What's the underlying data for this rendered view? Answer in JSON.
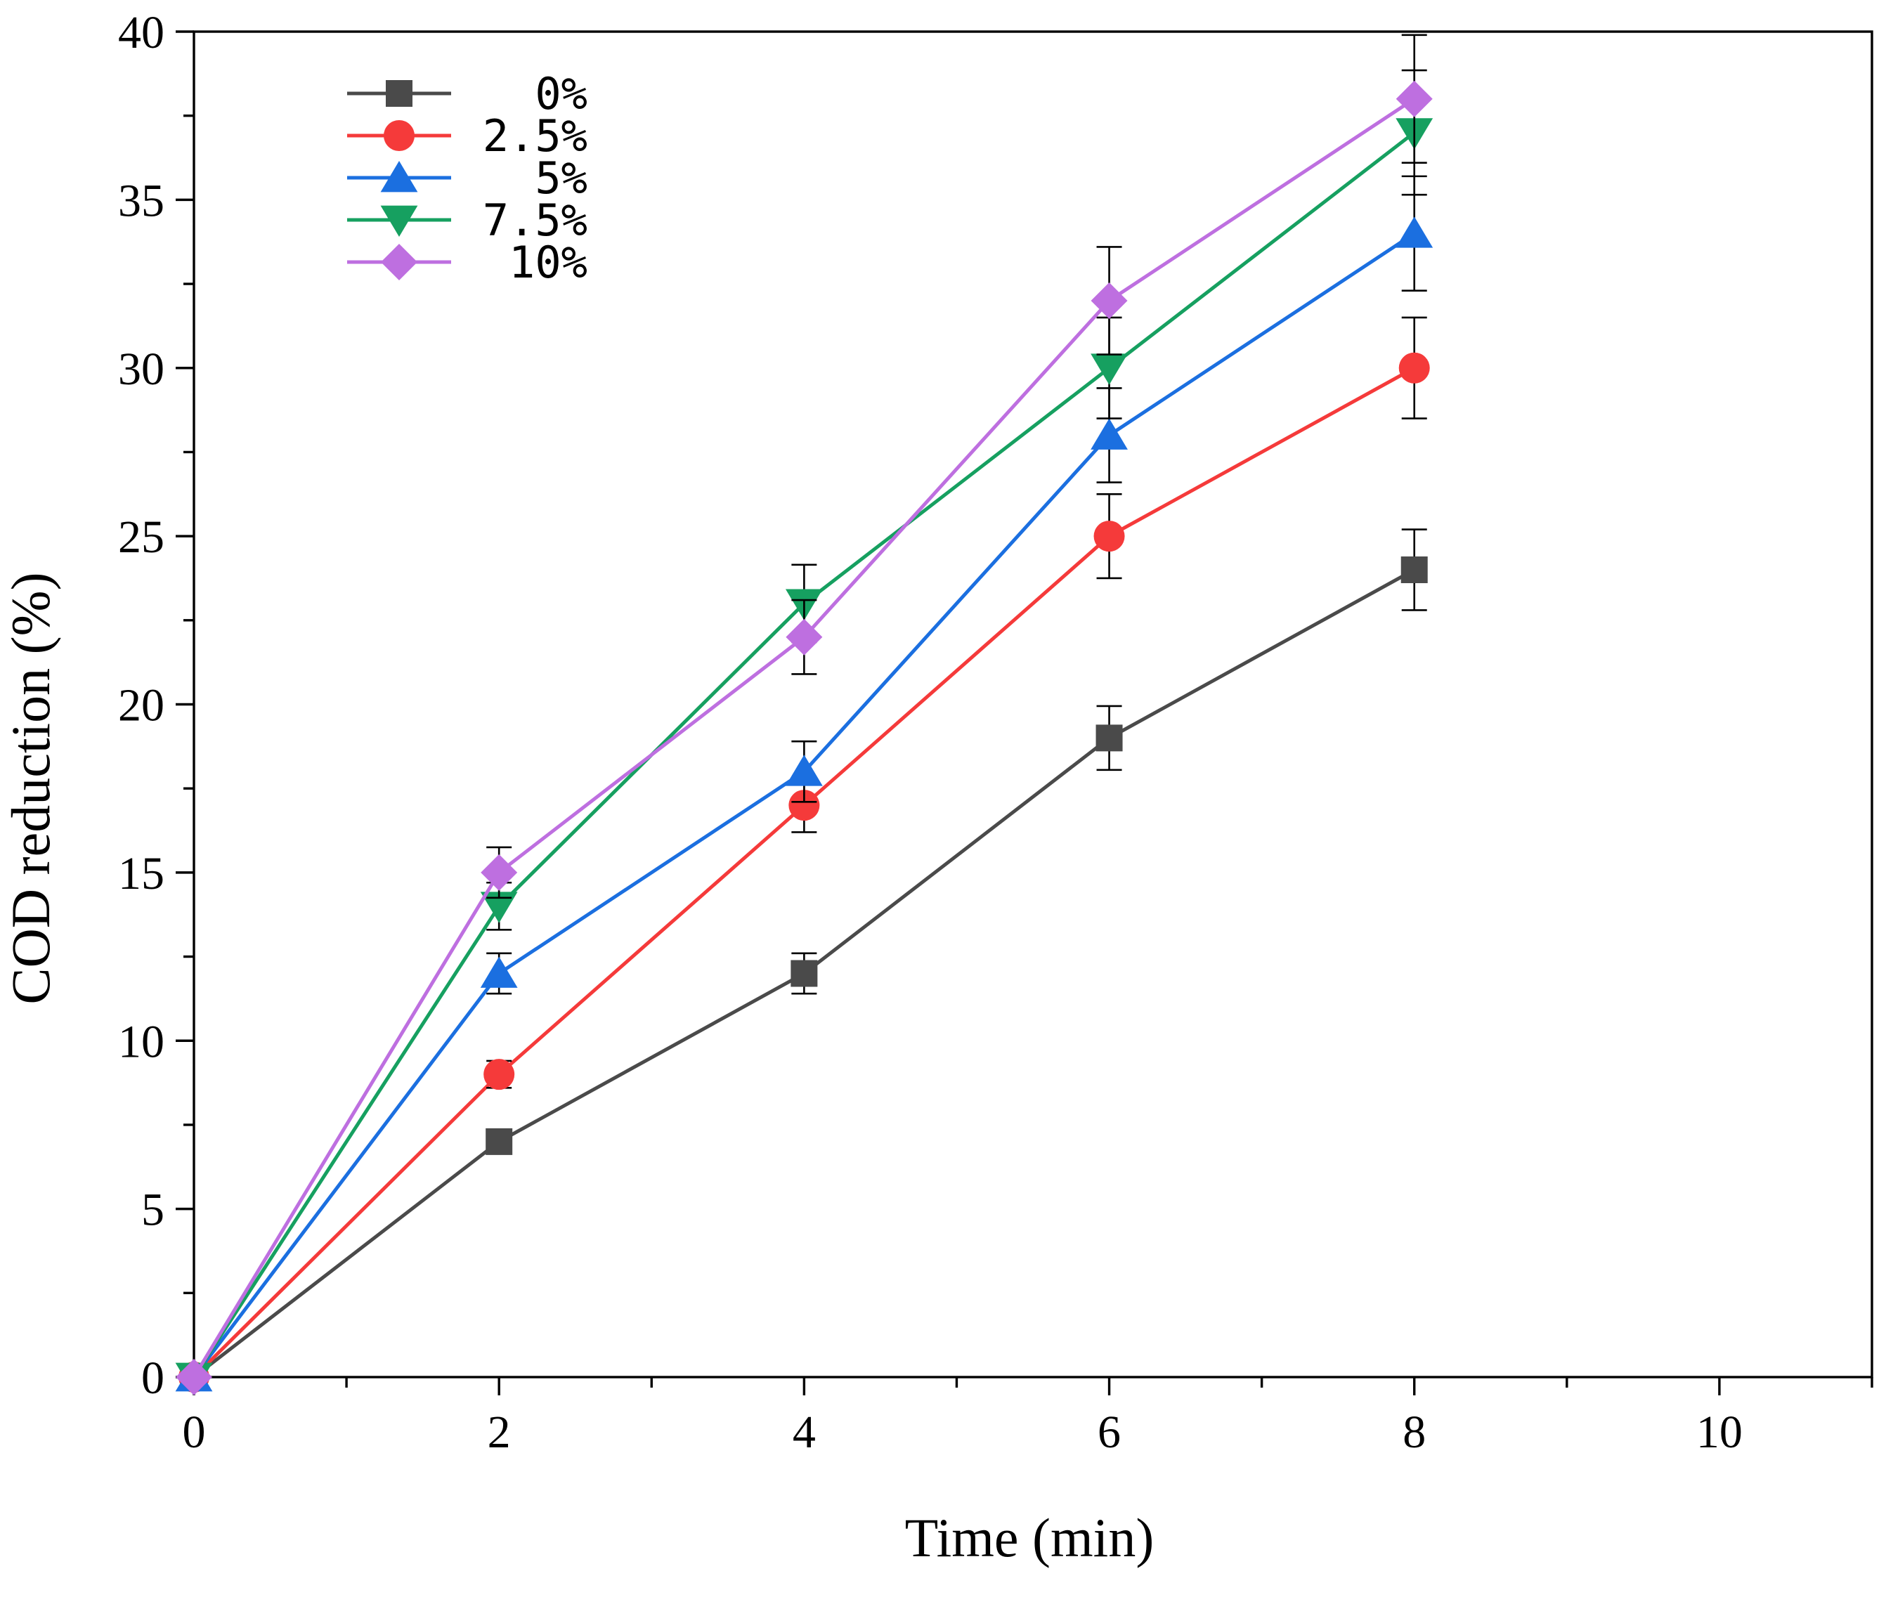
{
  "chart_data": {
    "type": "line",
    "title": "",
    "xlabel": "Time (min)",
    "ylabel": "COD reduction (%)",
    "xlim": [
      0,
      11
    ],
    "ylim": [
      0,
      40
    ],
    "xticks": [
      0,
      2,
      4,
      6,
      8,
      10
    ],
    "yticks": [
      0,
      5,
      10,
      15,
      20,
      25,
      30,
      35,
      40
    ],
    "xtick_labels": [
      "0",
      "2",
      "4",
      "6",
      "8",
      "10"
    ],
    "ytick_labels": [
      "0",
      "5",
      "10",
      "15",
      "20",
      "25",
      "30",
      "35",
      "40"
    ],
    "x": [
      0,
      2,
      4,
      6,
      8
    ],
    "legend_position": "top-left",
    "series": [
      {
        "name": "0%",
        "marker": "square",
        "color": "#4a4a4a",
        "values": [
          0,
          7,
          12,
          19,
          24
        ],
        "errors": [
          0,
          0.3,
          0.6,
          0.95,
          1.2
        ]
      },
      {
        "name": "2.5%",
        "marker": "circle",
        "color": "#f53a3a",
        "values": [
          0,
          9,
          17,
          25,
          30
        ],
        "errors": [
          0,
          0.4,
          0.8,
          1.25,
          1.5
        ]
      },
      {
        "name": "5%",
        "marker": "triangle-up",
        "color": "#1b6fe0",
        "values": [
          0,
          12,
          18,
          28,
          34
        ],
        "errors": [
          0,
          0.6,
          0.9,
          1.4,
          1.7
        ]
      },
      {
        "name": "7.5%",
        "marker": "triangle-down",
        "color": "#16a060",
        "values": [
          0,
          14,
          23,
          30,
          37
        ],
        "errors": [
          0,
          0.7,
          1.15,
          1.5,
          1.85
        ]
      },
      {
        "name": "10%",
        "marker": "diamond",
        "color": "#be6fe0",
        "values": [
          0,
          15,
          22,
          32,
          38
        ],
        "errors": [
          0,
          0.75,
          1.1,
          1.6,
          1.9
        ]
      }
    ]
  }
}
